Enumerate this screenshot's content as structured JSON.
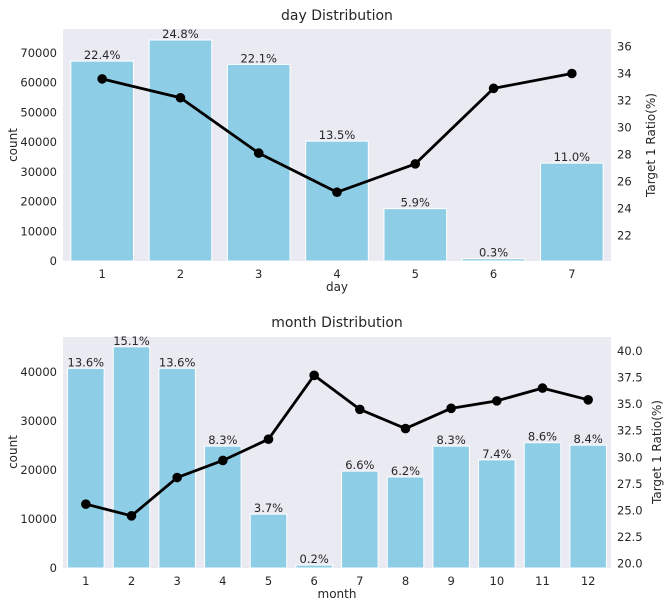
{
  "chart_data": [
    {
      "type": "bar",
      "title": "day Distribution",
      "xlabel": "day",
      "ylabel": "count",
      "y2label": "Target 1 Ratio(%)",
      "categories": [
        "1",
        "2",
        "3",
        "4",
        "5",
        "6",
        "7"
      ],
      "series": [
        {
          "values": [
            67200,
            74300,
            66100,
            40300,
            17600,
            800,
            32900
          ],
          "labels": [
            "22.4%",
            "24.8%",
            "22.1%",
            "13.5%",
            "5.9%",
            "0.3%",
            "11.0%"
          ],
          "color": "#8ecde6"
        },
        {
          "values": [
            33.6,
            32.2,
            28.1,
            25.2,
            27.3,
            32.9,
            34.0
          ],
          "axis": "right",
          "color": "#000000"
        }
      ],
      "ylim": [
        0,
        78000
      ],
      "yticks": [
        0,
        10000,
        20000,
        30000,
        40000,
        50000,
        60000,
        70000
      ],
      "y2lim": [
        20.1,
        37.3
      ],
      "y2ticks": [
        22,
        24,
        26,
        28,
        30,
        32,
        34,
        36
      ],
      "grid": false,
      "background": "#eaeaf2"
    },
    {
      "type": "bar",
      "title": "month Distribution",
      "xlabel": "month",
      "ylabel": "count",
      "y2label": "Target 1 Ratio(%)",
      "categories": [
        "1",
        "2",
        "3",
        "4",
        "5",
        "6",
        "7",
        "8",
        "9",
        "10",
        "11",
        "12"
      ],
      "series": [
        {
          "values": [
            40800,
            45200,
            40800,
            24900,
            11000,
            600,
            19800,
            18600,
            24900,
            22100,
            25600,
            25100
          ],
          "labels": [
            "13.6%",
            "15.1%",
            "13.6%",
            "8.3%",
            "3.7%",
            "0.2%",
            "6.6%",
            "6.2%",
            "8.3%",
            "7.4%",
            "8.6%",
            "8.4%"
          ],
          "color": "#8ecde6"
        },
        {
          "values": [
            25.6,
            24.5,
            28.1,
            29.7,
            31.7,
            37.7,
            34.5,
            32.7,
            34.6,
            35.3,
            36.5,
            35.4
          ],
          "axis": "right",
          "color": "#000000"
        }
      ],
      "ylim": [
        0,
        47200
      ],
      "yticks": [
        0,
        10000,
        20000,
        30000,
        40000
      ],
      "y2lim": [
        19.6,
        41.3
      ],
      "y2ticks": [
        "20.0",
        "22.5",
        "25.0",
        "27.5",
        "30.0",
        "32.5",
        "35.0",
        "37.5",
        "40.0"
      ],
      "grid": false,
      "background": "#eaeaf2"
    }
  ]
}
